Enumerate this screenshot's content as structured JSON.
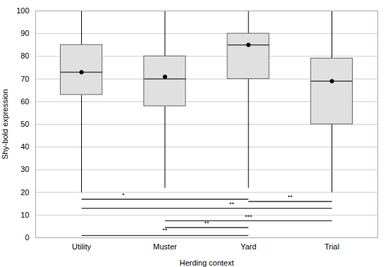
{
  "chart_data": {
    "type": "box",
    "xlabel": "Herding context",
    "ylabel": "Shy-bold expression",
    "categories": [
      "Utility",
      "Muster",
      "Yard",
      "Trial"
    ],
    "q1": [
      63,
      58,
      70,
      50
    ],
    "median": [
      73,
      70,
      85,
      69
    ],
    "q3": [
      85,
      80,
      90,
      79
    ],
    "whisker_low": [
      20,
      22,
      22,
      20
    ],
    "whisker_high": [
      100,
      100,
      100,
      100
    ],
    "mean": [
      73,
      71,
      85,
      69
    ],
    "color": "#e0e0e0",
    "ylim": [
      0,
      100
    ],
    "yticks": [
      0,
      10,
      20,
      30,
      40,
      50,
      60,
      70,
      80,
      90,
      100
    ],
    "grid": true,
    "annotations": [
      {
        "from": "Utility",
        "to": "Yard",
        "y": 1.0,
        "label": "**",
        "label_x": 1.0,
        "label_y": 2.2
      },
      {
        "from": "Utility",
        "to": "Yard",
        "y": 17.0,
        "label": "*",
        "label_x": 0.5,
        "label_y": 17.8
      },
      {
        "from": "Utility",
        "to": "Trial",
        "y": 13.0,
        "label": "**",
        "label_x": 1.8,
        "label_y": 13.8
      },
      {
        "from": "Muster",
        "to": "Yard",
        "y": 4.5,
        "label": "**",
        "label_x": 1.5,
        "label_y": 5.3
      },
      {
        "from": "Muster",
        "to": "Trial",
        "y": 7.5,
        "label": "***",
        "label_x": 2.0,
        "label_y": 8.3
      },
      {
        "from": "Yard",
        "to": "Trial",
        "y": 16.0,
        "label": "**",
        "label_x": 2.5,
        "label_y": 16.8
      }
    ]
  }
}
